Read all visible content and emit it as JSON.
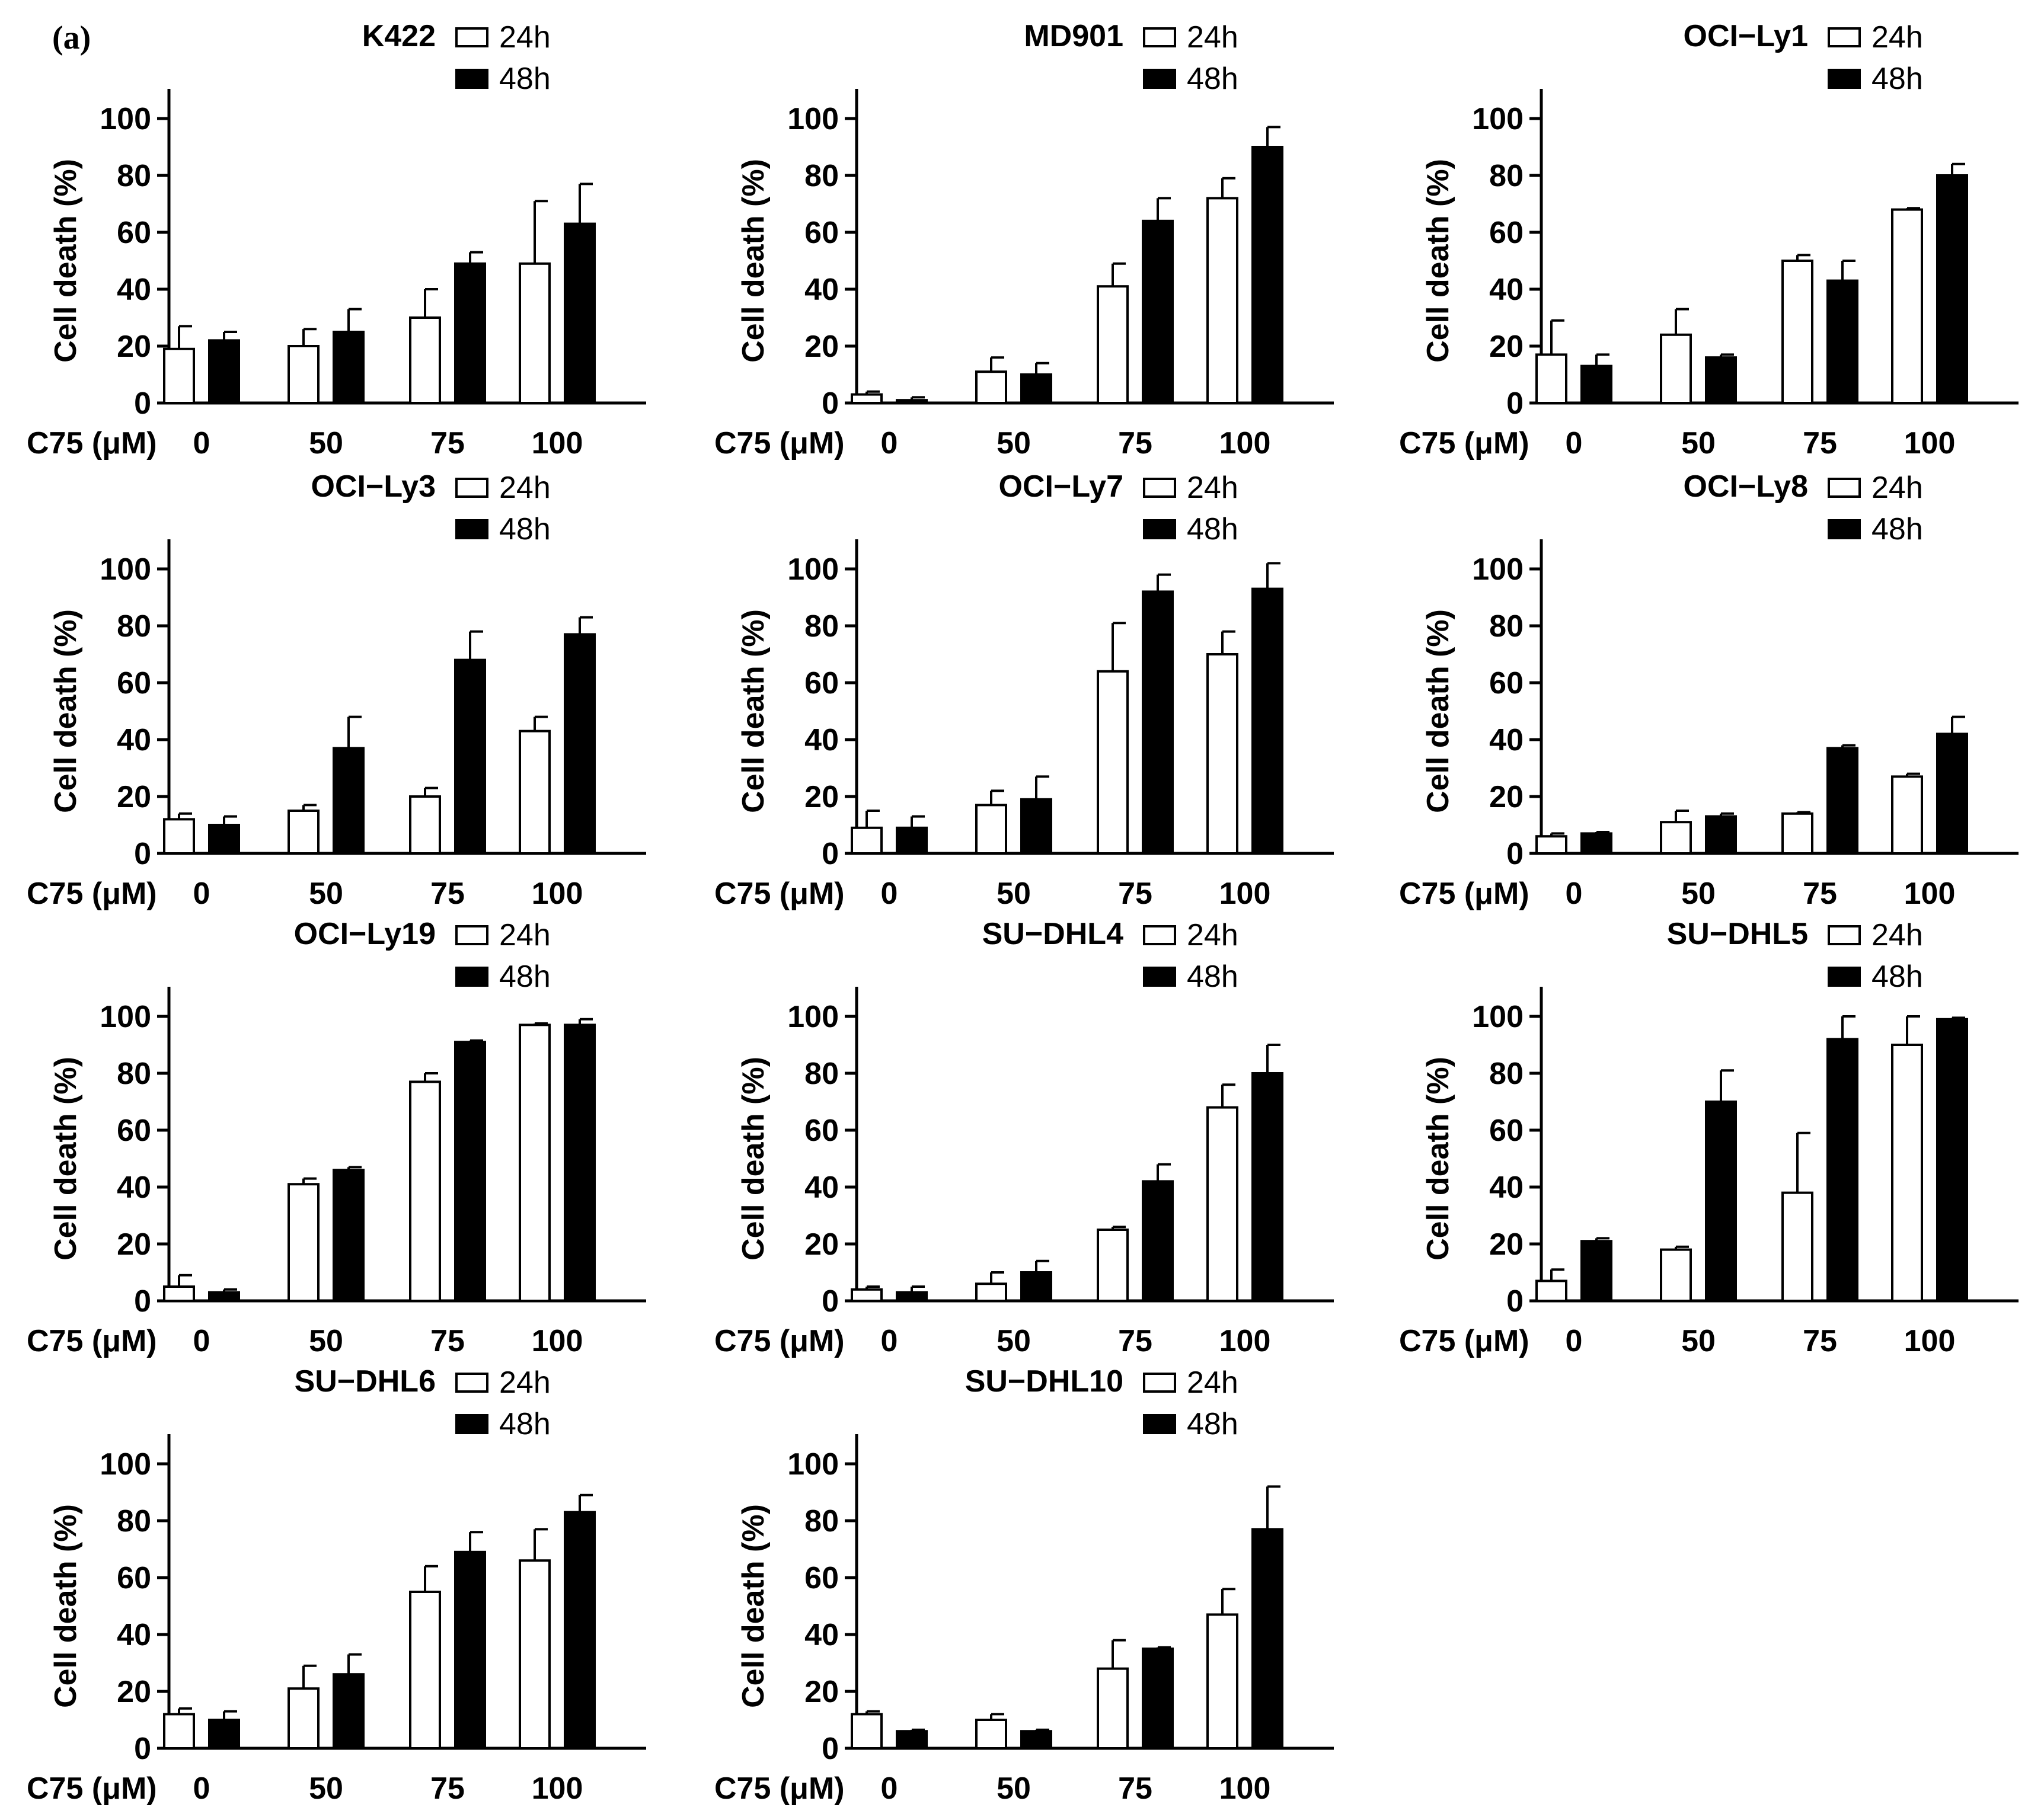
{
  "figure": {
    "panel_label": "(a)"
  },
  "colors": {
    "h24": "#ffffff",
    "h48": "#000000",
    "stroke": "#000000"
  },
  "chart_data": [
    {
      "type": "bar",
      "title": "K422",
      "xlabel": "C75 (μM)",
      "ylabel": "Cell death (%)",
      "categories": [
        "0",
        "50",
        "75",
        "100"
      ],
      "yticks": [
        0,
        20,
        40,
        60,
        80,
        100
      ],
      "ylim": [
        0,
        110
      ],
      "series": [
        {
          "name": "24h",
          "values": [
            19,
            20,
            30,
            49
          ],
          "errors": [
            8,
            6,
            10,
            22
          ]
        },
        {
          "name": "48h",
          "values": [
            22,
            25,
            49,
            63
          ],
          "errors": [
            3,
            8,
            4,
            14
          ]
        }
      ]
    },
    {
      "type": "bar",
      "title": "MD901",
      "xlabel": "C75 (μM)",
      "ylabel": "Cell death (%)",
      "categories": [
        "0",
        "50",
        "75",
        "100"
      ],
      "yticks": [
        0,
        20,
        40,
        60,
        80,
        100
      ],
      "ylim": [
        0,
        110
      ],
      "series": [
        {
          "name": "24h",
          "values": [
            3,
            11,
            41,
            72
          ],
          "errors": [
            1,
            5,
            8,
            7
          ]
        },
        {
          "name": "48h",
          "values": [
            1,
            10,
            64,
            90
          ],
          "errors": [
            1,
            4,
            8,
            7
          ]
        }
      ]
    },
    {
      "type": "bar",
      "title": "OCI−Ly1",
      "xlabel": "C75 (μM)",
      "ylabel": "Cell death (%)",
      "categories": [
        "0",
        "50",
        "75",
        "100"
      ],
      "yticks": [
        0,
        20,
        40,
        60,
        80,
        100
      ],
      "ylim": [
        0,
        110
      ],
      "series": [
        {
          "name": "24h",
          "values": [
            17,
            24,
            50,
            68
          ],
          "errors": [
            12,
            9,
            2,
            0.5
          ]
        },
        {
          "name": "48h",
          "values": [
            13,
            16,
            43,
            80
          ],
          "errors": [
            4,
            1,
            7,
            4
          ]
        }
      ]
    },
    {
      "type": "bar",
      "title": "OCI−Ly3",
      "xlabel": "C75 (μM)",
      "ylabel": "Cell death (%)",
      "categories": [
        "0",
        "50",
        "75",
        "100"
      ],
      "yticks": [
        0,
        20,
        40,
        60,
        80,
        100
      ],
      "ylim": [
        0,
        110
      ],
      "series": [
        {
          "name": "24h",
          "values": [
            12,
            15,
            20,
            43
          ],
          "errors": [
            2,
            2,
            3,
            5
          ]
        },
        {
          "name": "48h",
          "values": [
            10,
            37,
            68,
            77
          ],
          "errors": [
            3,
            11,
            10,
            6
          ]
        }
      ]
    },
    {
      "type": "bar",
      "title": "OCI−Ly7",
      "xlabel": "C75 (μM)",
      "ylabel": "Cell death (%)",
      "categories": [
        "0",
        "50",
        "75",
        "100"
      ],
      "yticks": [
        0,
        20,
        40,
        60,
        80,
        100
      ],
      "ylim": [
        0,
        110
      ],
      "series": [
        {
          "name": "24h",
          "values": [
            9,
            17,
            64,
            70
          ],
          "errors": [
            6,
            5,
            17,
            8
          ]
        },
        {
          "name": "48h",
          "values": [
            9,
            19,
            92,
            93
          ],
          "errors": [
            4,
            8,
            6,
            9
          ]
        }
      ]
    },
    {
      "type": "bar",
      "title": "OCI−Ly8",
      "xlabel": "C75 (μM)",
      "ylabel": "Cell death (%)",
      "categories": [
        "0",
        "50",
        "75",
        "100"
      ],
      "yticks": [
        0,
        20,
        40,
        60,
        80,
        100
      ],
      "ylim": [
        0,
        110
      ],
      "series": [
        {
          "name": "24h",
          "values": [
            6,
            11,
            14,
            27
          ],
          "errors": [
            1,
            4,
            0.5,
            1
          ]
        },
        {
          "name": "48h",
          "values": [
            7,
            13,
            37,
            42
          ],
          "errors": [
            0.5,
            1,
            1,
            6
          ]
        }
      ]
    },
    {
      "type": "bar",
      "title": "OCI−Ly19",
      "xlabel": "C75 (μM)",
      "ylabel": "Cell death (%)",
      "categories": [
        "0",
        "50",
        "75",
        "100"
      ],
      "yticks": [
        0,
        20,
        40,
        60,
        80,
        100
      ],
      "ylim": [
        0,
        110
      ],
      "series": [
        {
          "name": "24h",
          "values": [
            5,
            41,
            77,
            97
          ],
          "errors": [
            4,
            2,
            3,
            0.5
          ]
        },
        {
          "name": "48h",
          "values": [
            3,
            46,
            91,
            97
          ],
          "errors": [
            1,
            1,
            0.5,
            2
          ]
        }
      ]
    },
    {
      "type": "bar",
      "title": "SU−DHL4",
      "xlabel": "C75 (μM)",
      "ylabel": "Cell death (%)",
      "categories": [
        "0",
        "50",
        "75",
        "100"
      ],
      "yticks": [
        0,
        20,
        40,
        60,
        80,
        100
      ],
      "ylim": [
        0,
        110
      ],
      "series": [
        {
          "name": "24h",
          "values": [
            4,
            6,
            25,
            68
          ],
          "errors": [
            1,
            4,
            1,
            8
          ]
        },
        {
          "name": "48h",
          "values": [
            3,
            10,
            42,
            80
          ],
          "errors": [
            2,
            4,
            6,
            10
          ]
        }
      ]
    },
    {
      "type": "bar",
      "title": "SU−DHL5",
      "xlabel": "C75 (μM)",
      "ylabel": "Cell death (%)",
      "categories": [
        "0",
        "50",
        "75",
        "100"
      ],
      "yticks": [
        0,
        20,
        40,
        60,
        80,
        100
      ],
      "ylim": [
        0,
        110
      ],
      "series": [
        {
          "name": "24h",
          "values": [
            7,
            18,
            38,
            90
          ],
          "errors": [
            4,
            1,
            21,
            10
          ]
        },
        {
          "name": "48h",
          "values": [
            21,
            70,
            92,
            99
          ],
          "errors": [
            1,
            11,
            8,
            0.5
          ]
        }
      ]
    },
    {
      "type": "bar",
      "title": "SU−DHL6",
      "xlabel": "C75 (μM)",
      "ylabel": "Cell death (%)",
      "categories": [
        "0",
        "50",
        "75",
        "100"
      ],
      "yticks": [
        0,
        20,
        40,
        60,
        80,
        100
      ],
      "ylim": [
        0,
        110
      ],
      "series": [
        {
          "name": "24h",
          "values": [
            12,
            21,
            55,
            66
          ],
          "errors": [
            2,
            8,
            9,
            11
          ]
        },
        {
          "name": "48h",
          "values": [
            10,
            26,
            69,
            83
          ],
          "errors": [
            3,
            7,
            7,
            6
          ]
        }
      ]
    },
    {
      "type": "bar",
      "title": "SU−DHL10",
      "xlabel": "C75 (μM)",
      "ylabel": "Cell death (%)",
      "categories": [
        "0",
        "50",
        "75",
        "100"
      ],
      "yticks": [
        0,
        20,
        40,
        60,
        80,
        100
      ],
      "ylim": [
        0,
        110
      ],
      "series": [
        {
          "name": "24h",
          "values": [
            12,
            10,
            28,
            47
          ],
          "errors": [
            1,
            2,
            10,
            9
          ]
        },
        {
          "name": "48h",
          "values": [
            6,
            6,
            35,
            77
          ],
          "errors": [
            0.5,
            0.5,
            0.5,
            15
          ]
        }
      ]
    }
  ]
}
